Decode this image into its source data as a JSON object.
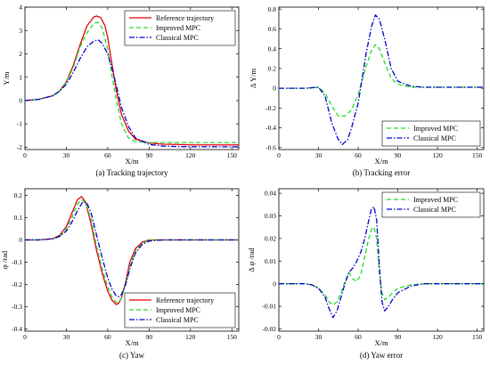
{
  "colors": {
    "reference": "#e8000b",
    "improved": "#22dd22",
    "classical": "#0000cc"
  },
  "chart_data": [
    {
      "type": "line",
      "caption": "(a) Tracking trajectory",
      "xlabel": "X/m",
      "ylabel": "Y/m",
      "xlim": [
        0,
        155
      ],
      "ylim": [
        -2.1,
        4.0
      ],
      "xticks": [
        0,
        30,
        60,
        90,
        120,
        150
      ],
      "xtick_labels": [
        "0",
        "30",
        "60",
        "90",
        "120",
        "150"
      ],
      "yticks": [
        -2,
        -1,
        0,
        1,
        2,
        3,
        4
      ],
      "ytick_labels": [
        "-2",
        "-1",
        "0",
        "1",
        "2",
        "3",
        "4"
      ],
      "legend": "top-right",
      "series": [
        {
          "name": "Reference trajectory",
          "style": "solid",
          "x": [
            0,
            10,
            20,
            25,
            30,
            35,
            40,
            45,
            50,
            52,
            55,
            58,
            60,
            63,
            66,
            70,
            75,
            80,
            90,
            100,
            110,
            120,
            130,
            140,
            150,
            155
          ],
          "y": [
            0,
            0.05,
            0.2,
            0.4,
            0.8,
            1.5,
            2.4,
            3.2,
            3.58,
            3.62,
            3.55,
            3.2,
            2.7,
            1.6,
            0.5,
            -0.6,
            -1.3,
            -1.65,
            -1.82,
            -1.87,
            -1.88,
            -1.9,
            -1.9,
            -1.9,
            -1.9,
            -1.9
          ]
        },
        {
          "name": "Improved MPC",
          "style": "dashed",
          "x": [
            0,
            10,
            20,
            25,
            30,
            35,
            40,
            45,
            50,
            53,
            56,
            60,
            63,
            66,
            70,
            75,
            80,
            90,
            100,
            110,
            120,
            130,
            140,
            150,
            155
          ],
          "y": [
            0,
            0.05,
            0.2,
            0.4,
            0.8,
            1.4,
            2.3,
            2.9,
            3.3,
            3.35,
            3.1,
            2.2,
            1.1,
            0.1,
            -1.0,
            -1.6,
            -1.75,
            -1.8,
            -1.8,
            -1.8,
            -1.8,
            -1.8,
            -1.8,
            -1.8,
            -1.8
          ]
        },
        {
          "name": "Classical MPC",
          "style": "dashdot",
          "x": [
            0,
            10,
            20,
            25,
            30,
            35,
            40,
            45,
            50,
            53,
            56,
            60,
            63,
            66,
            70,
            75,
            80,
            90,
            100,
            110,
            120,
            130,
            140,
            150,
            155
          ],
          "y": [
            0,
            0.05,
            0.2,
            0.4,
            0.7,
            1.2,
            1.8,
            2.3,
            2.55,
            2.6,
            2.45,
            2.0,
            1.4,
            0.7,
            -0.3,
            -1.1,
            -1.6,
            -1.88,
            -1.95,
            -1.97,
            -1.98,
            -1.98,
            -1.98,
            -1.98,
            -1.98
          ]
        }
      ]
    },
    {
      "type": "line",
      "caption": "(b) Tracking error",
      "xlabel": "X/m",
      "ylabel": "Δ Y/m",
      "xlim": [
        0,
        155
      ],
      "ylim": [
        -0.62,
        0.82
      ],
      "xticks": [
        0,
        30,
        60,
        90,
        120,
        150
      ],
      "xtick_labels": [
        "0",
        "30",
        "60",
        "90",
        "120",
        "150"
      ],
      "yticks": [
        -0.6,
        -0.4,
        -0.2,
        0,
        0.2,
        0.4,
        0.6,
        0.8
      ],
      "ytick_labels": [
        "-0.6",
        "-0.4",
        "-0.2",
        "0",
        "0.2",
        "0.4",
        "0.6",
        "0.8"
      ],
      "legend": "bottom-right",
      "series": [
        {
          "name": "Improved MPC",
          "style": "dashed",
          "x": [
            0,
            20,
            25,
            30,
            35,
            40,
            45,
            50,
            55,
            60,
            63,
            66,
            70,
            73,
            76,
            80,
            85,
            90,
            100,
            110,
            120,
            130,
            140,
            150,
            155
          ],
          "y": [
            0,
            0,
            0.005,
            0.01,
            -0.05,
            -0.18,
            -0.28,
            -0.28,
            -0.22,
            -0.06,
            0.08,
            0.22,
            0.38,
            0.44,
            0.4,
            0.26,
            0.1,
            0.04,
            0.01,
            0.01,
            0.01,
            0.01,
            0.01,
            0.01,
            0.01
          ]
        },
        {
          "name": "Classical MPC",
          "style": "dashdot",
          "x": [
            0,
            20,
            25,
            30,
            35,
            40,
            45,
            48,
            52,
            55,
            60,
            63,
            66,
            70,
            73,
            76,
            80,
            85,
            90,
            100,
            110,
            120,
            130,
            140,
            150,
            155
          ],
          "y": [
            0,
            0,
            0.005,
            0.01,
            -0.08,
            -0.35,
            -0.52,
            -0.57,
            -0.52,
            -0.4,
            -0.15,
            0.1,
            0.35,
            0.62,
            0.74,
            0.7,
            0.5,
            0.2,
            0.07,
            0.02,
            0.01,
            0.01,
            0.01,
            0.01,
            0.01,
            0.01
          ]
        }
      ]
    },
    {
      "type": "line",
      "caption": "(c) Yaw",
      "xlabel": "X/m",
      "ylabel": "φ /rad",
      "xlim": [
        0,
        155
      ],
      "ylim": [
        -0.41,
        0.23
      ],
      "xticks": [
        0,
        30,
        60,
        90,
        120,
        150
      ],
      "xtick_labels": [
        "0",
        "30",
        "60",
        "90",
        "120",
        "150"
      ],
      "yticks": [
        -0.4,
        -0.3,
        -0.2,
        -0.1,
        0,
        0.1,
        0.2
      ],
      "ytick_labels": [
        "-0.4",
        "-0.3",
        "-0.2",
        "-0.1",
        "0",
        "0.1",
        "0.2"
      ],
      "legend": "bottom-right",
      "series": [
        {
          "name": "Reference trajectory",
          "style": "solid",
          "x": [
            0,
            10,
            20,
            25,
            30,
            34,
            38,
            41,
            44,
            48,
            52,
            56,
            60,
            63,
            66,
            68,
            70,
            73,
            76,
            80,
            85,
            90,
            100,
            110,
            120,
            130,
            140,
            150,
            155
          ],
          "y": [
            0,
            0,
            0.005,
            0.02,
            0.06,
            0.12,
            0.18,
            0.195,
            0.17,
            0.07,
            -0.05,
            -0.15,
            -0.23,
            -0.27,
            -0.29,
            -0.285,
            -0.26,
            -0.19,
            -0.1,
            -0.04,
            -0.01,
            0,
            0,
            0,
            0,
            0,
            0,
            0,
            0
          ]
        },
        {
          "name": "Improved MPC",
          "style": "dashed",
          "x": [
            0,
            10,
            20,
            25,
            30,
            34,
            38,
            41,
            44,
            48,
            52,
            56,
            60,
            63,
            66,
            68,
            70,
            73,
            76,
            80,
            85,
            90,
            100,
            110,
            120,
            130,
            140,
            150,
            155
          ],
          "y": [
            0,
            0,
            0.005,
            0.015,
            0.05,
            0.1,
            0.16,
            0.18,
            0.17,
            0.09,
            -0.03,
            -0.13,
            -0.21,
            -0.255,
            -0.28,
            -0.28,
            -0.26,
            -0.2,
            -0.12,
            -0.05,
            -0.015,
            0,
            0,
            0,
            0,
            0,
            0,
            0,
            0
          ]
        },
        {
          "name": "Classical MPC",
          "style": "dashdot",
          "x": [
            0,
            10,
            20,
            25,
            30,
            34,
            38,
            42,
            45,
            48,
            52,
            56,
            60,
            63,
            66,
            68,
            70,
            73,
            76,
            80,
            85,
            90,
            100,
            110,
            120,
            130,
            140,
            150,
            155
          ],
          "y": [
            0,
            0,
            0.005,
            0.015,
            0.04,
            0.08,
            0.13,
            0.172,
            0.165,
            0.12,
            0.02,
            -0.08,
            -0.17,
            -0.22,
            -0.25,
            -0.255,
            -0.245,
            -0.2,
            -0.13,
            -0.06,
            -0.02,
            -0.005,
            0,
            0,
            0,
            0,
            0,
            0,
            0
          ]
        }
      ]
    },
    {
      "type": "line",
      "caption": "(d) Yaw error",
      "xlabel": "X/m",
      "ylabel": "Δ φ /rad",
      "xlim": [
        0,
        155
      ],
      "ylim": [
        -0.021,
        0.042
      ],
      "xticks": [
        0,
        30,
        60,
        90,
        120,
        150
      ],
      "xtick_labels": [
        "0",
        "30",
        "60",
        "90",
        "120",
        "150"
      ],
      "yticks": [
        -0.02,
        -0.01,
        0,
        0.01,
        0.02,
        0.03,
        0.04
      ],
      "ytick_labels": [
        "-0.02",
        "-0.01",
        "0",
        "0.01",
        "0.02",
        "0.03",
        "0.04"
      ],
      "legend": "top-right",
      "series": [
        {
          "name": "Improved MPC",
          "style": "dashed",
          "x": [
            0,
            20,
            25,
            30,
            35,
            38,
            41,
            44,
            47,
            50,
            53,
            56,
            59,
            62,
            65,
            68,
            70,
            72,
            74,
            76,
            78,
            80,
            83,
            86,
            90,
            100,
            110,
            120,
            130,
            140,
            150,
            155
          ],
          "y": [
            0,
            0,
            -0.0005,
            -0.002,
            -0.005,
            -0.008,
            -0.0095,
            -0.008,
            -0.004,
            0.001,
            0.005,
            0.002,
            0.001,
            0.004,
            0.012,
            0.02,
            0.024,
            0.025,
            0.02,
            0.005,
            -0.004,
            -0.007,
            -0.006,
            -0.004,
            -0.002,
            -0.0005,
            0,
            0,
            0,
            0,
            0,
            0
          ]
        },
        {
          "name": "Classical MPC",
          "style": "dashdot",
          "x": [
            0,
            20,
            25,
            30,
            35,
            38,
            41,
            44,
            47,
            50,
            53,
            56,
            59,
            62,
            65,
            68,
            70,
            72,
            74,
            76,
            78,
            80,
            83,
            86,
            90,
            100,
            110,
            120,
            130,
            140,
            150,
            155
          ],
          "y": [
            0,
            0,
            -0.0005,
            -0.002,
            -0.006,
            -0.011,
            -0.015,
            -0.012,
            -0.006,
            0.0,
            0.005,
            0.007,
            0.01,
            0.014,
            0.02,
            0.028,
            0.033,
            0.034,
            0.028,
            0.008,
            -0.008,
            -0.012,
            -0.01,
            -0.007,
            -0.004,
            -0.001,
            0,
            0,
            0,
            0,
            0,
            0
          ]
        }
      ]
    }
  ]
}
